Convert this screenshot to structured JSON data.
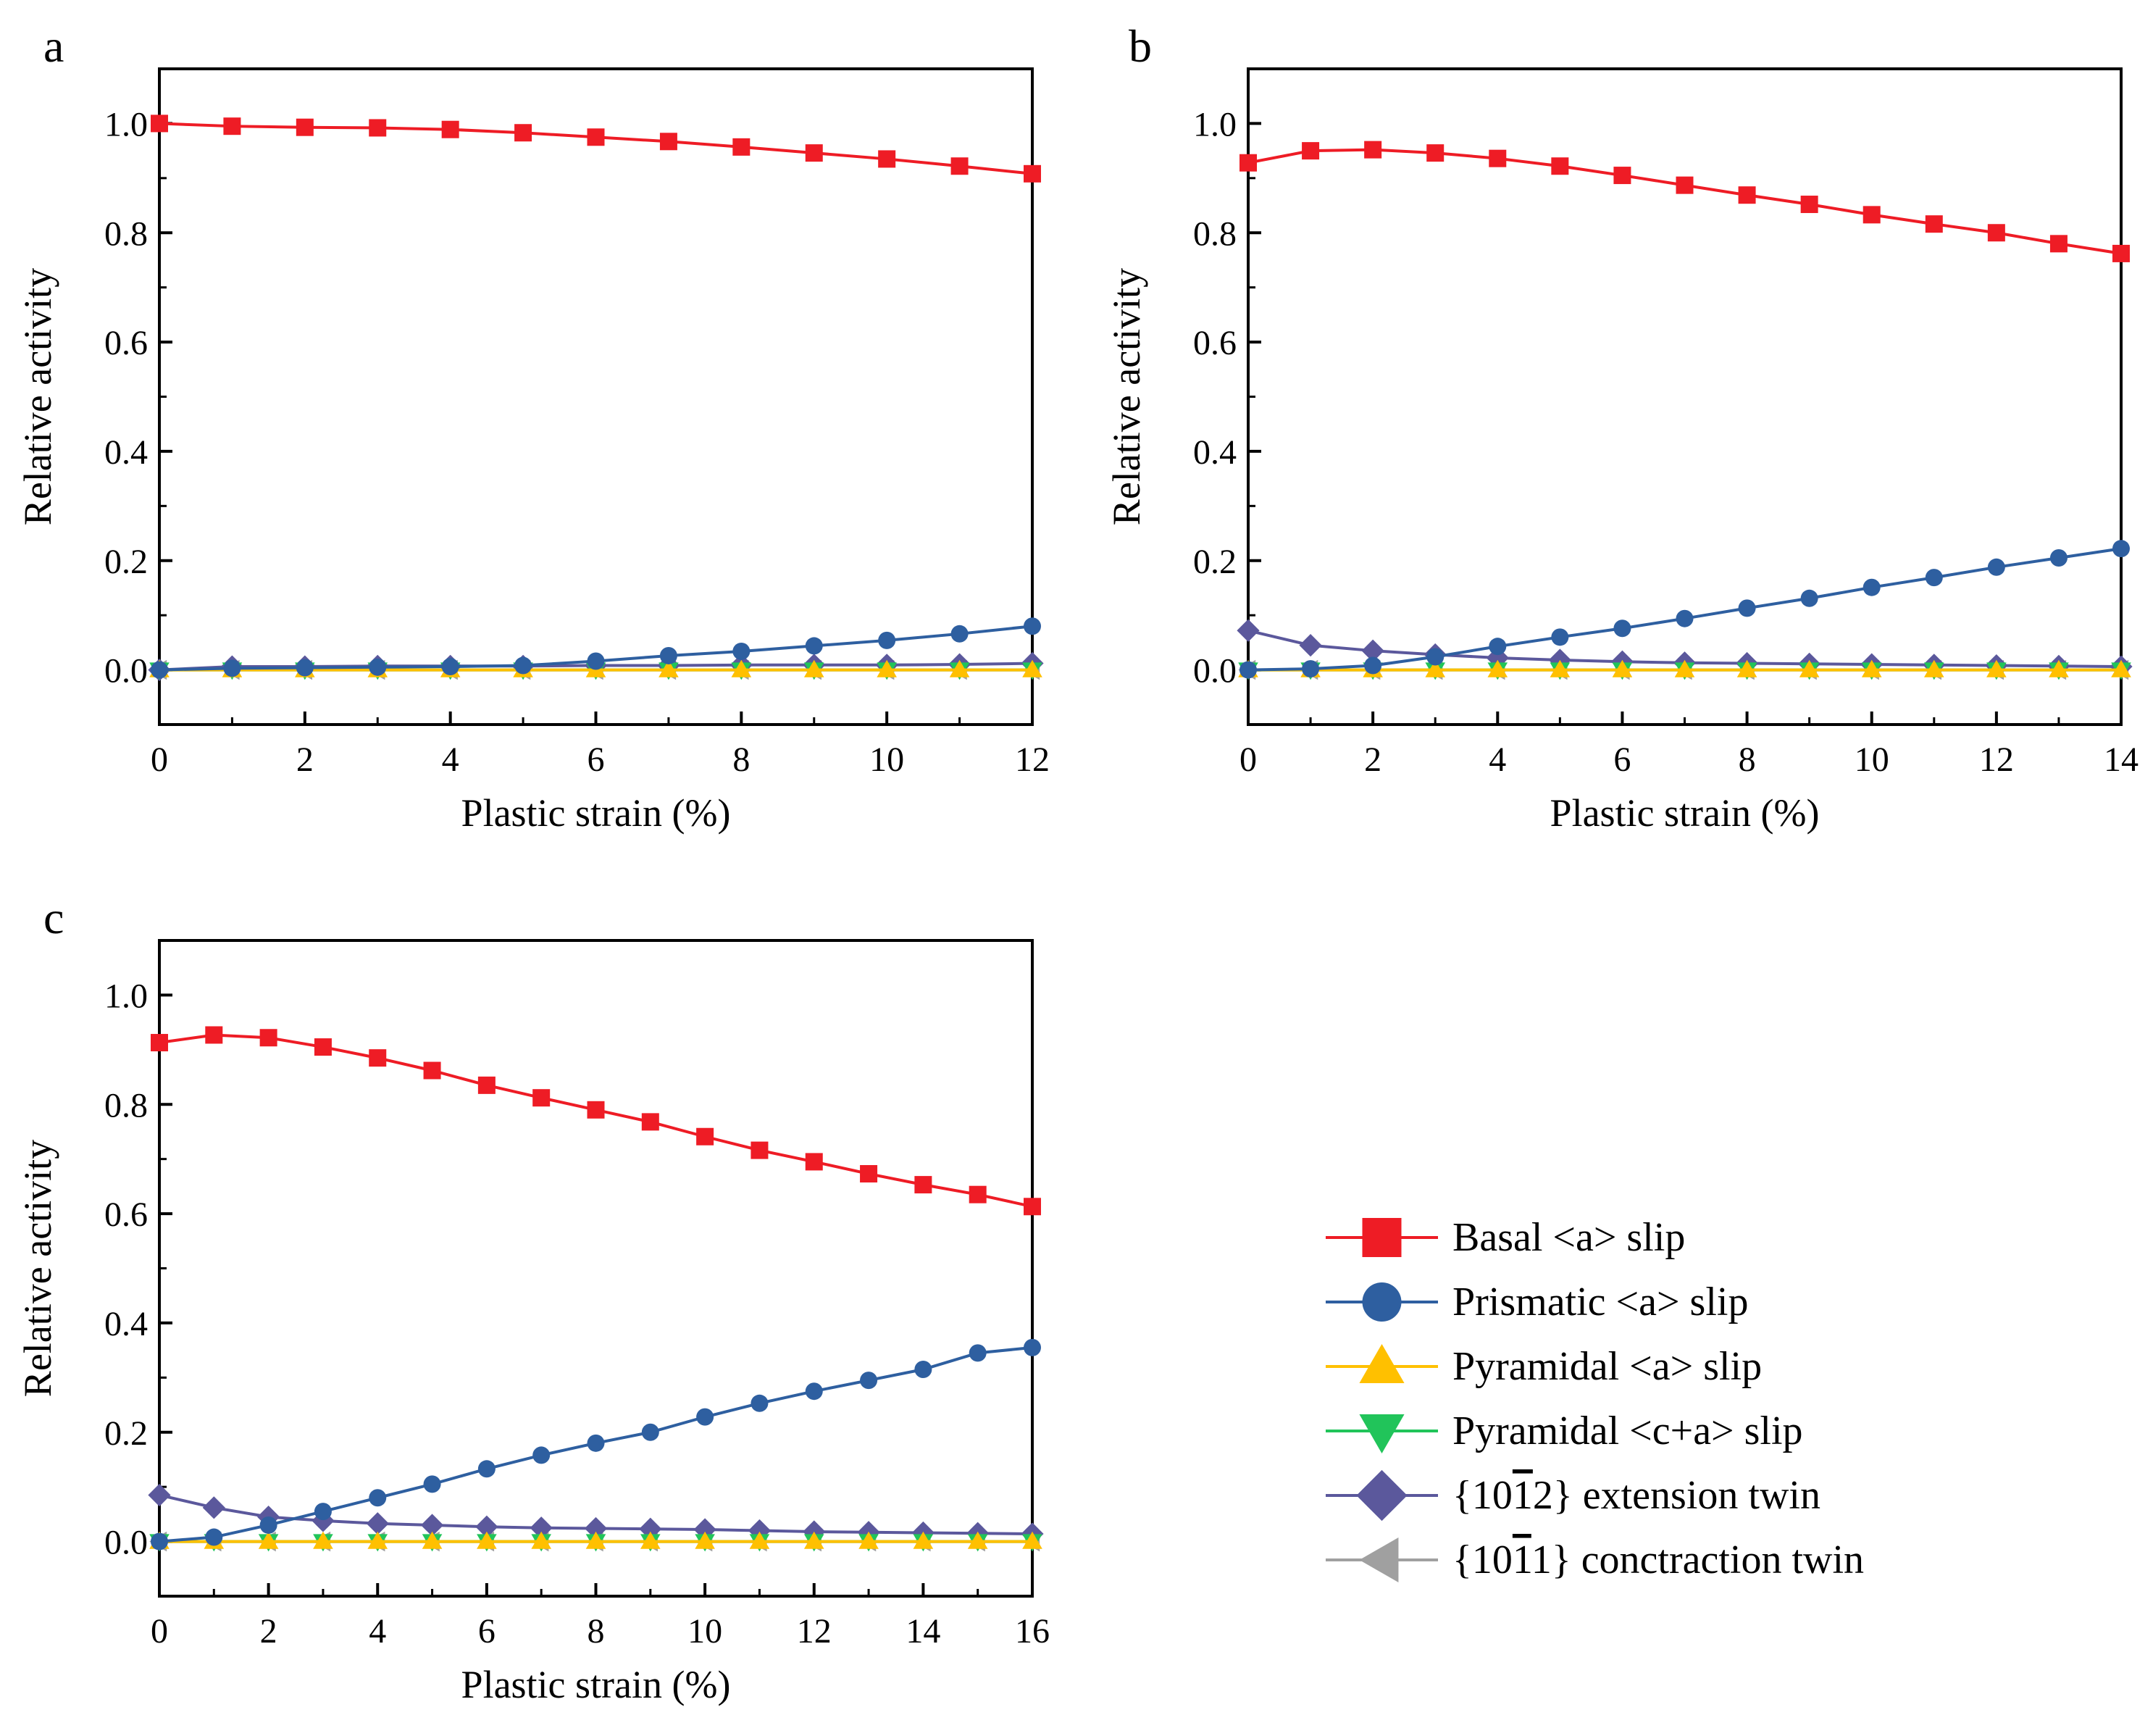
{
  "chart_data": [
    {
      "panel_label": "a",
      "type": "line",
      "xlabel": "Plastic strain (%)",
      "ylabel": "Relative activity",
      "xlim": [
        0,
        12
      ],
      "ylim": [
        -0.1,
        1.1
      ],
      "xticks": [
        "0",
        "2",
        "4",
        "6",
        "8",
        "10",
        "12"
      ],
      "yticks": [
        "0.0",
        "0.2",
        "0.4",
        "0.6",
        "0.8",
        "1.0"
      ],
      "grid": false,
      "x": [
        0,
        1,
        2,
        3,
        4,
        5,
        6,
        7,
        8,
        9,
        10,
        11,
        12
      ],
      "series": [
        {
          "name": "Basal <a> slip",
          "values": [
            1.0,
            0.995,
            0.993,
            0.992,
            0.989,
            0.983,
            0.975,
            0.967,
            0.957,
            0.946,
            0.935,
            0.922,
            0.908
          ]
        },
        {
          "name": "Prismatic <a> slip",
          "values": [
            0.0,
            0.003,
            0.004,
            0.005,
            0.006,
            0.008,
            0.016,
            0.026,
            0.034,
            0.044,
            0.054,
            0.066,
            0.08
          ]
        },
        {
          "name": "Pyramidal <a> slip",
          "values": [
            0,
            0,
            0,
            0,
            0,
            0,
            0,
            0,
            0,
            0,
            0,
            0,
            0
          ]
        },
        {
          "name": "Pyramidal <c+a> slip",
          "values": [
            0,
            0,
            0,
            0,
            0,
            0,
            0,
            0,
            0,
            0,
            0,
            0,
            0
          ]
        },
        {
          "name": "{10-12} extension twin",
          "values": [
            0.0,
            0.006,
            0.006,
            0.007,
            0.007,
            0.007,
            0.008,
            0.008,
            0.009,
            0.009,
            0.009,
            0.01,
            0.012
          ]
        },
        {
          "name": "{10-11} conctraction twin",
          "values": [
            0,
            0,
            0,
            0,
            0,
            0,
            0,
            0,
            0,
            0,
            0,
            0,
            0
          ]
        }
      ]
    },
    {
      "panel_label": "b",
      "type": "line",
      "xlabel": "Plastic strain (%)",
      "ylabel": "Relative activity",
      "xlim": [
        0,
        14
      ],
      "ylim": [
        -0.1,
        1.1
      ],
      "xticks": [
        "0",
        "2",
        "4",
        "6",
        "8",
        "10",
        "12",
        "14"
      ],
      "yticks": [
        "0.0",
        "0.2",
        "0.4",
        "0.6",
        "0.8",
        "1.0"
      ],
      "grid": false,
      "x": [
        0,
        1,
        2,
        3,
        4,
        5,
        6,
        7,
        8,
        9,
        10,
        11,
        12,
        13,
        14
      ],
      "series": [
        {
          "name": "Basal <a> slip",
          "values": [
            0.928,
            0.95,
            0.952,
            0.946,
            0.936,
            0.922,
            0.905,
            0.887,
            0.869,
            0.852,
            0.833,
            0.816,
            0.8,
            0.78,
            0.762
          ]
        },
        {
          "name": "Prismatic <a> slip",
          "values": [
            0.0,
            0.002,
            0.008,
            0.024,
            0.043,
            0.06,
            0.076,
            0.094,
            0.113,
            0.131,
            0.151,
            0.169,
            0.188,
            0.205,
            0.222
          ]
        },
        {
          "name": "Pyramidal <a> slip",
          "values": [
            0,
            0,
            0,
            0,
            0,
            0,
            0,
            0,
            0,
            0,
            0,
            0,
            0,
            0,
            0
          ]
        },
        {
          "name": "Pyramidal <c+a> slip",
          "values": [
            0,
            0,
            0,
            0,
            0,
            0,
            0,
            0,
            0,
            0,
            0,
            0,
            0,
            0,
            0
          ]
        },
        {
          "name": "{10-12} extension twin",
          "values": [
            0.072,
            0.045,
            0.035,
            0.028,
            0.022,
            0.018,
            0.015,
            0.013,
            0.012,
            0.011,
            0.01,
            0.009,
            0.008,
            0.007,
            0.006
          ]
        },
        {
          "name": "{10-11} conctraction twin",
          "values": [
            0,
            0,
            0,
            0,
            0,
            0,
            0,
            0,
            0,
            0,
            0,
            0,
            0,
            0,
            0
          ]
        }
      ]
    },
    {
      "panel_label": "c",
      "type": "line",
      "xlabel": "Plastic strain (%)",
      "ylabel": "Relative activity",
      "xlim": [
        0,
        16
      ],
      "ylim": [
        -0.1,
        1.1
      ],
      "xticks": [
        "0",
        "2",
        "4",
        "6",
        "8",
        "10",
        "12",
        "14",
        "16"
      ],
      "yticks": [
        "0.0",
        "0.2",
        "0.4",
        "0.6",
        "0.8",
        "1.0"
      ],
      "grid": false,
      "x": [
        0,
        1,
        2,
        3,
        4,
        5,
        6,
        7,
        8,
        9,
        10,
        11,
        12,
        13,
        14,
        15,
        16
      ],
      "series": [
        {
          "name": "Basal <a> slip",
          "values": [
            0.913,
            0.927,
            0.922,
            0.905,
            0.885,
            0.862,
            0.835,
            0.812,
            0.79,
            0.768,
            0.741,
            0.716,
            0.695,
            0.673,
            0.653,
            0.635,
            0.613
          ]
        },
        {
          "name": "Prismatic <a> slip",
          "values": [
            0.0,
            0.008,
            0.03,
            0.055,
            0.08,
            0.105,
            0.133,
            0.158,
            0.18,
            0.2,
            0.228,
            0.253,
            0.275,
            0.295,
            0.315,
            0.345,
            0.355
          ]
        },
        {
          "name": "Pyramidal <a> slip",
          "values": [
            0,
            0,
            0,
            0,
            0,
            0,
            0,
            0,
            0,
            0,
            0,
            0,
            0,
            0,
            0,
            0,
            0
          ]
        },
        {
          "name": "Pyramidal <c+a> slip",
          "values": [
            0,
            0,
            0,
            0,
            0,
            0,
            0,
            0,
            0,
            0,
            0,
            0,
            0,
            0,
            0,
            0,
            0
          ]
        },
        {
          "name": "{10-12} extension twin",
          "values": [
            0.085,
            0.062,
            0.045,
            0.038,
            0.033,
            0.03,
            0.027,
            0.025,
            0.024,
            0.023,
            0.022,
            0.02,
            0.018,
            0.017,
            0.016,
            0.015,
            0.014
          ]
        },
        {
          "name": "{10-11} conctraction twin",
          "values": [
            0,
            0,
            0,
            0,
            0,
            0,
            0,
            0,
            0,
            0,
            0,
            0,
            0,
            0,
            0,
            0,
            0
          ]
        }
      ]
    }
  ],
  "series_styles": [
    {
      "name": "Basal <a> slip",
      "color": "#ee1c25",
      "marker": "square"
    },
    {
      "name": "Prismatic <a> slip",
      "color": "#2e5fa0",
      "marker": "circle"
    },
    {
      "name": "Pyramidal <a> slip",
      "color": "#ffc000",
      "marker": "triangle-up"
    },
    {
      "name": "Pyramidal <c+a> slip",
      "color": "#21c45a",
      "marker": "triangle-down"
    },
    {
      "name": "{10-12} extension twin",
      "color": "#5b589c",
      "marker": "diamond"
    },
    {
      "name": "{10-11} conctraction twin",
      "color": "#a0a0a0",
      "marker": "triangle-left"
    }
  ],
  "legend": {
    "placement": "bottom-right",
    "items": [
      {
        "prefix": "Basal <a> slip",
        "bar": "",
        "suffix": ""
      },
      {
        "prefix": "Prismatic <a> slip",
        "bar": "",
        "suffix": ""
      },
      {
        "prefix": "Pyramidal <a> slip",
        "bar": "",
        "suffix": ""
      },
      {
        "prefix": "Pyramidal <c+a> slip",
        "bar": "",
        "suffix": ""
      },
      {
        "prefix": "{10",
        "bar": "1",
        "suffix": "2} extension twin"
      },
      {
        "prefix": "{10",
        "bar": "1",
        "suffix": "1} conctraction twin"
      }
    ]
  }
}
